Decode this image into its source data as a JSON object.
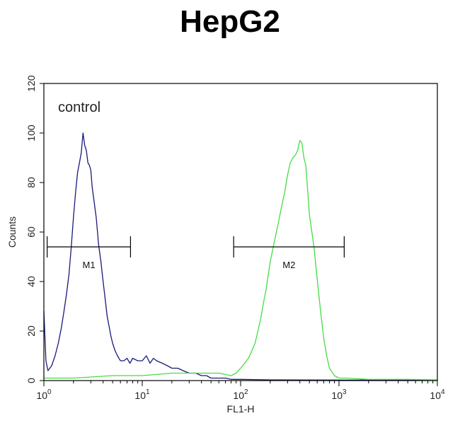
{
  "chart_data": {
    "type": "line",
    "title": "HepG2",
    "xlabel": "FL1-H",
    "ylabel": "Counts",
    "x_scale": "log",
    "xlim": [
      1,
      10000
    ],
    "ylim": [
      0,
      120
    ],
    "x_ticks": [
      {
        "value": 1,
        "base": "10",
        "exp": "0"
      },
      {
        "value": 10,
        "base": "10",
        "exp": "1"
      },
      {
        "value": 100,
        "base": "10",
        "exp": "2"
      },
      {
        "value": 1000,
        "base": "10",
        "exp": "3"
      },
      {
        "value": 10000,
        "base": "10",
        "exp": "4"
      }
    ],
    "y_ticks": [
      0,
      20,
      40,
      60,
      80,
      100,
      120
    ],
    "annotation": "control",
    "colors": {
      "control": "#1a1a7a",
      "sample": "#44dd44",
      "frame": "#000000"
    },
    "series": [
      {
        "key": "control",
        "x": [
          1,
          1.05,
          1.1,
          1.2,
          1.3,
          1.4,
          1.5,
          1.6,
          1.7,
          1.8,
          1.9,
          2.0,
          2.1,
          2.2,
          2.3,
          2.4,
          2.5,
          2.6,
          2.7,
          2.8,
          2.9,
          3.0,
          3.1,
          3.2,
          3.4,
          3.6,
          3.8,
          4.0,
          4.2,
          4.4,
          4.6,
          4.8,
          5.0,
          5.3,
          5.6,
          6.0,
          6.5,
          7.0,
          7.5,
          8.0,
          9.0,
          10,
          11,
          12,
          13,
          14,
          16,
          18,
          20,
          23,
          26,
          30,
          35,
          40,
          45,
          50,
          60,
          70,
          80,
          100,
          200,
          1000,
          10000
        ],
        "y": [
          28,
          8,
          4,
          6,
          10,
          15,
          21,
          28,
          35,
          43,
          54,
          66,
          76,
          84,
          88,
          92,
          100,
          95,
          93,
          88,
          87,
          85,
          78,
          74,
          66,
          55,
          48,
          40,
          33,
          26,
          22,
          18,
          15,
          12,
          10,
          8,
          8,
          9,
          7,
          9,
          8,
          8,
          10,
          7,
          9,
          8,
          7,
          6,
          5,
          5,
          4,
          3,
          3,
          2,
          2,
          1,
          1,
          1,
          0.5,
          0.5,
          0.3,
          0.2,
          0.2
        ]
      },
      {
        "key": "sample",
        "x": [
          1,
          2,
          5,
          10,
          20,
          40,
          60,
          80,
          90,
          100,
          110,
          120,
          130,
          140,
          150,
          160,
          170,
          180,
          190,
          200,
          220,
          240,
          260,
          280,
          300,
          320,
          340,
          360,
          380,
          400,
          420,
          440,
          460,
          480,
          500,
          530,
          560,
          600,
          650,
          700,
          750,
          800,
          900,
          1000,
          1200,
          2000,
          5000,
          10000
        ],
        "y": [
          1,
          1,
          2,
          2,
          3,
          3,
          3,
          2,
          3,
          5,
          7,
          9,
          12,
          15,
          20,
          25,
          31,
          36,
          42,
          48,
          56,
          63,
          70,
          76,
          83,
          88,
          90,
          91,
          93,
          97,
          96,
          90,
          87,
          77,
          67,
          60,
          53,
          41,
          28,
          17,
          10,
          5,
          2,
          1,
          1,
          0.5,
          0.5,
          0.3
        ]
      }
    ],
    "markers": [
      {
        "label": "M1",
        "x_start": 1.08,
        "x_end": 7.6,
        "y": 54
      },
      {
        "label": "M2",
        "x_start": 85,
        "x_end": 1130,
        "y": 54
      }
    ]
  }
}
